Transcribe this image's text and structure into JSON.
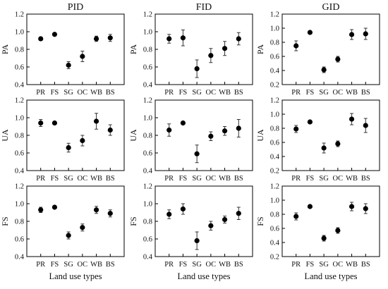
{
  "chart_data": [
    {
      "type": "scatter",
      "title": "PID",
      "ylabel": "PA",
      "xlabel": "",
      "categories": [
        "PR",
        "FS",
        "SG",
        "OC",
        "WB",
        "BS"
      ],
      "ylim": [
        0.4,
        1.2
      ],
      "yticks": [
        "0.4",
        "0.6",
        "0.8",
        "1.0",
        "1.2"
      ],
      "values": [
        0.92,
        0.97,
        0.62,
        0.72,
        0.92,
        0.93
      ],
      "error": [
        0.02,
        0.01,
        0.04,
        0.06,
        0.03,
        0.04
      ]
    },
    {
      "type": "scatter",
      "title": "FID",
      "ylabel": "PA",
      "xlabel": "",
      "categories": [
        "PR",
        "FS",
        "SG",
        "OC",
        "WB",
        "BS"
      ],
      "ylim": [
        0.4,
        1.2
      ],
      "yticks": [
        "0.4",
        "0.6",
        "0.8",
        "1.0",
        "1.2"
      ],
      "values": [
        0.92,
        0.93,
        0.58,
        0.73,
        0.81,
        0.92
      ],
      "error": [
        0.05,
        0.09,
        0.1,
        0.08,
        0.08,
        0.07
      ]
    },
    {
      "type": "scatter",
      "title": "GID",
      "ylabel": "PA",
      "xlabel": "",
      "categories": [
        "PR",
        "FS",
        "SG",
        "OC",
        "WB",
        "BS"
      ],
      "ylim": [
        0.2,
        1.2
      ],
      "yticks": [
        "0.2",
        "0.4",
        "0.6",
        "0.8",
        "1.0",
        "1.2"
      ],
      "values": [
        0.75,
        0.94,
        0.41,
        0.56,
        0.91,
        0.92
      ],
      "error": [
        0.07,
        0.01,
        0.04,
        0.04,
        0.07,
        0.08
      ]
    },
    {
      "type": "scatter",
      "title": "",
      "ylabel": "UA",
      "xlabel": "",
      "categories": [
        "PR",
        "FS",
        "SG",
        "OC",
        "WB",
        "BS"
      ],
      "ylim": [
        0.4,
        1.2
      ],
      "yticks": [
        "0.4",
        "0.6",
        "0.8",
        "1.0",
        "1.2"
      ],
      "values": [
        0.94,
        0.94,
        0.66,
        0.74,
        0.96,
        0.86
      ],
      "error": [
        0.04,
        0.01,
        0.05,
        0.06,
        0.09,
        0.06
      ]
    },
    {
      "type": "scatter",
      "title": "",
      "ylabel": "UA",
      "xlabel": "",
      "categories": [
        "PR",
        "FS",
        "SG",
        "OC",
        "WB",
        "BS"
      ],
      "ylim": [
        0.4,
        1.2
      ],
      "yticks": [
        "0.4",
        "0.6",
        "0.8",
        "1.0",
        "1.2"
      ],
      "values": [
        0.86,
        0.94,
        0.59,
        0.79,
        0.85,
        0.88
      ],
      "error": [
        0.07,
        0.01,
        0.1,
        0.05,
        0.05,
        0.1
      ]
    },
    {
      "type": "scatter",
      "title": "",
      "ylabel": "UA",
      "xlabel": "",
      "categories": [
        "PR",
        "FS",
        "SG",
        "OC",
        "WB",
        "BS"
      ],
      "ylim": [
        0.2,
        1.2
      ],
      "yticks": [
        "0.2",
        "0.4",
        "0.6",
        "0.8",
        "1.0",
        "1.2"
      ],
      "values": [
        0.79,
        0.89,
        0.52,
        0.58,
        0.93,
        0.84
      ],
      "error": [
        0.05,
        0.02,
        0.07,
        0.04,
        0.08,
        0.1
      ]
    },
    {
      "type": "scatter",
      "title": "",
      "ylabel": "FS",
      "xlabel": "Land use types",
      "categories": [
        "PR",
        "FS",
        "SG",
        "OC",
        "WB",
        "BS"
      ],
      "ylim": [
        0.4,
        1.2
      ],
      "yticks": [
        "0.4",
        "0.6",
        "0.8",
        "1.0",
        "1.2"
      ],
      "values": [
        0.93,
        0.96,
        0.64,
        0.73,
        0.93,
        0.89
      ],
      "error": [
        0.03,
        0.01,
        0.04,
        0.04,
        0.04,
        0.04
      ]
    },
    {
      "type": "scatter",
      "title": "",
      "ylabel": "FS",
      "xlabel": "Land use types",
      "categories": [
        "PR",
        "FS",
        "SG",
        "OC",
        "WB",
        "BS"
      ],
      "ylim": [
        0.4,
        1.2
      ],
      "yticks": [
        "0.4",
        "0.6",
        "0.8",
        "1.0",
        "1.2"
      ],
      "values": [
        0.88,
        0.94,
        0.58,
        0.75,
        0.82,
        0.89
      ],
      "error": [
        0.05,
        0.06,
        0.1,
        0.05,
        0.04,
        0.07
      ]
    },
    {
      "type": "scatter",
      "title": "",
      "ylabel": "FS",
      "xlabel": "Land use types",
      "categories": [
        "PR",
        "FS",
        "SG",
        "OC",
        "WB",
        "BS"
      ],
      "ylim": [
        0.2,
        1.2
      ],
      "yticks": [
        "0.2",
        "0.4",
        "0.6",
        "0.8",
        "1.0",
        "1.2"
      ],
      "values": [
        0.77,
        0.91,
        0.46,
        0.57,
        0.91,
        0.88
      ],
      "error": [
        0.05,
        0.01,
        0.04,
        0.04,
        0.06,
        0.07
      ]
    }
  ]
}
